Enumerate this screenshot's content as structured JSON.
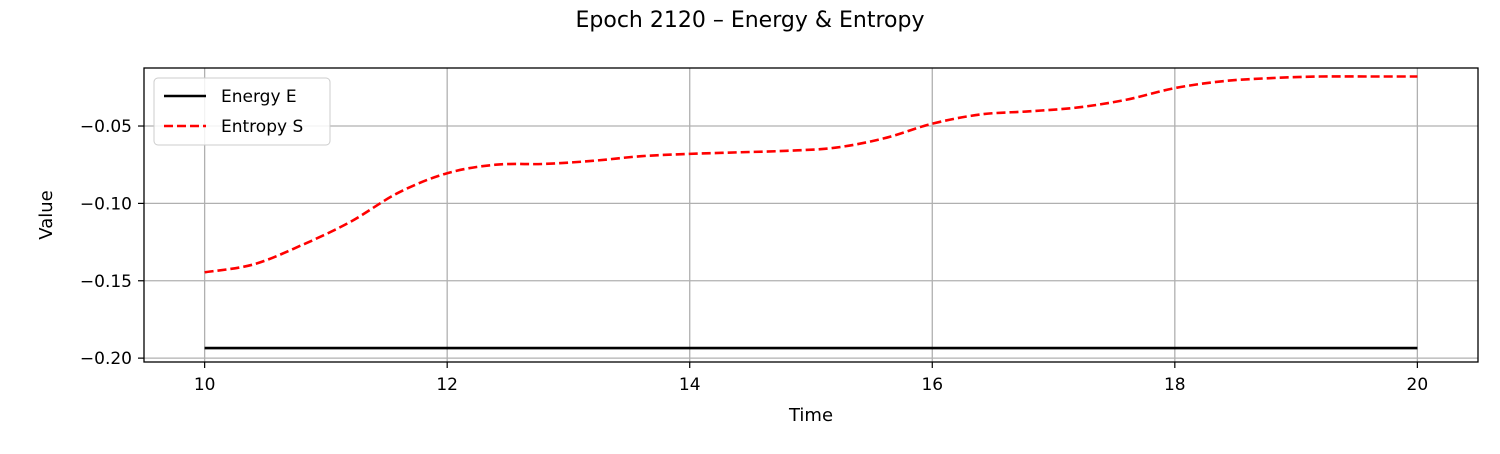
{
  "chart_data": {
    "type": "line",
    "title": "Epoch 2120 – Energy & Entropy",
    "xlabel": "Time",
    "ylabel": "Value",
    "xlim": [
      9.5,
      20.5
    ],
    "ylim": [
      -0.2025,
      -0.0125
    ],
    "xticks": [
      10,
      12,
      14,
      16,
      18,
      20
    ],
    "yticks": [
      -0.2,
      -0.15,
      -0.1,
      -0.05
    ],
    "ytick_labels": [
      "−0.20",
      "−0.15",
      "−0.10",
      "−0.05"
    ],
    "grid": true,
    "legend": "top-left",
    "series": [
      {
        "name": "Energy E",
        "color": "#000000",
        "style": "solid",
        "x": [
          10,
          20
        ],
        "y": [
          -0.1935,
          -0.1935
        ]
      },
      {
        "name": "Entropy S",
        "color": "#ff0000",
        "style": "dashed",
        "x": [
          10,
          10.4,
          10.8,
          11.2,
          11.6,
          12,
          12.4,
          12.8,
          13.2,
          13.6,
          14,
          14.4,
          14.8,
          15.2,
          15.6,
          16,
          16.4,
          16.8,
          17.2,
          17.6,
          18,
          18.4,
          18.8,
          19.2,
          19.6,
          20
        ],
        "y": [
          -0.1445,
          -0.1395,
          -0.127,
          -0.112,
          -0.093,
          -0.0805,
          -0.075,
          -0.0745,
          -0.0725,
          -0.0695,
          -0.068,
          -0.067,
          -0.066,
          -0.064,
          -0.058,
          -0.0485,
          -0.0425,
          -0.0405,
          -0.038,
          -0.033,
          -0.0255,
          -0.021,
          -0.019,
          -0.018,
          -0.018,
          -0.018
        ]
      }
    ]
  }
}
